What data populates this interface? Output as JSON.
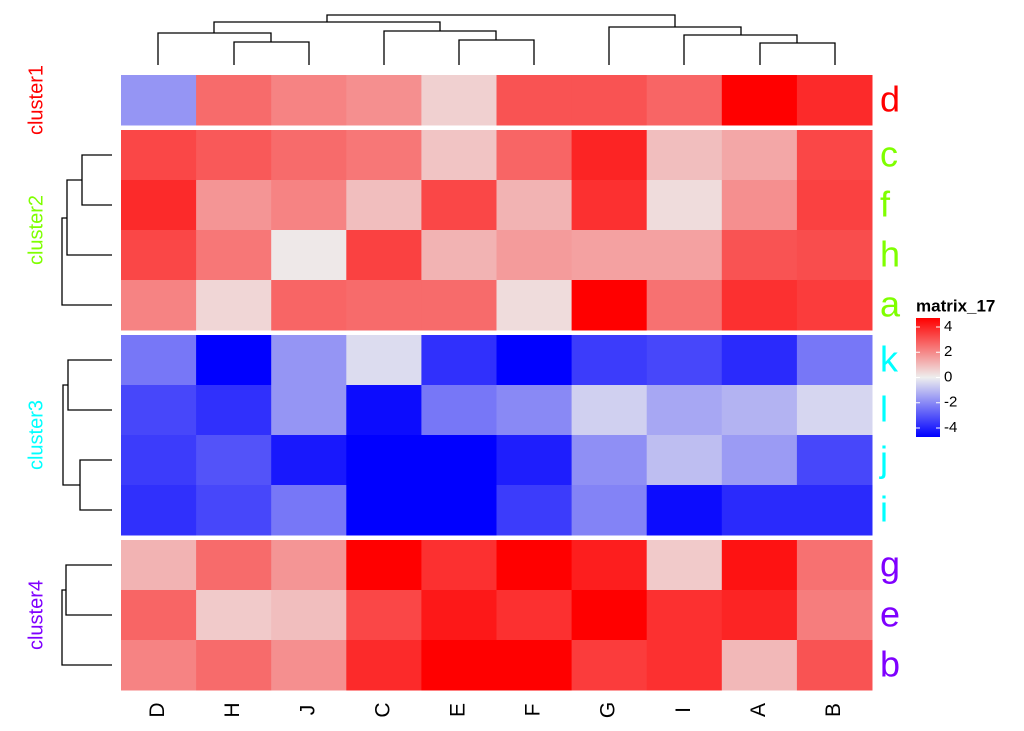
{
  "chart_data": {
    "type": "heatmap",
    "legend_title": "matrix_17",
    "x": [
      "D",
      "H",
      "J",
      "C",
      "E",
      "F",
      "G",
      "I",
      "A",
      "B"
    ],
    "groups": [
      {
        "name": "cluster1",
        "color": "#ff0000",
        "rows": [
          "d"
        ],
        "values": [
          [
            -1.5,
            2.2,
            1.8,
            1.6,
            0.5,
            2.6,
            2.6,
            2.3,
            4.0,
            3.3
          ]
        ]
      },
      {
        "name": "cluster2",
        "color": "#7fff00",
        "rows": [
          "c",
          "f",
          "h",
          "a"
        ],
        "values": [
          [
            2.8,
            2.5,
            2.2,
            2.0,
            0.7,
            2.3,
            3.4,
            0.8,
            1.2,
            2.8
          ],
          [
            3.3,
            1.5,
            1.8,
            0.8,
            2.8,
            1.0,
            3.2,
            0.3,
            1.6,
            2.9
          ],
          [
            2.8,
            2.0,
            0.1,
            2.9,
            1.0,
            1.4,
            1.3,
            1.3,
            2.6,
            2.7
          ],
          [
            1.8,
            0.4,
            2.3,
            2.2,
            2.2,
            0.3,
            4.0,
            2.1,
            3.2,
            3.0
          ]
        ]
      },
      {
        "name": "cluster3",
        "color": "#00ffff",
        "rows": [
          "k",
          "l",
          "j",
          "i"
        ],
        "values": [
          [
            -2.0,
            -4.2,
            -1.5,
            -0.3,
            -3.2,
            -4.0,
            -3.0,
            -2.8,
            -3.3,
            -2.0
          ],
          [
            -2.8,
            -3.2,
            -1.5,
            -3.8,
            -2.0,
            -1.7,
            -0.5,
            -1.2,
            -1.0,
            -0.4
          ],
          [
            -3.0,
            -2.6,
            -3.6,
            -5.0,
            -5.0,
            -3.5,
            -1.6,
            -0.8,
            -1.4,
            -2.8
          ],
          [
            -3.2,
            -2.8,
            -2.0,
            -4.8,
            -4.3,
            -3.0,
            -1.8,
            -3.8,
            -3.3,
            -3.3
          ]
        ]
      },
      {
        "name": "cluster4",
        "color": "#7f00ff",
        "rows": [
          "g",
          "e",
          "b"
        ],
        "values": [
          [
            1.0,
            2.2,
            1.5,
            4.2,
            3.2,
            4.5,
            3.5,
            0.6,
            3.7,
            2.1
          ],
          [
            2.3,
            0.6,
            0.8,
            2.8,
            3.6,
            3.2,
            5.0,
            3.2,
            3.4,
            1.9
          ],
          [
            1.8,
            2.2,
            1.6,
            3.3,
            4.0,
            5.0,
            3.0,
            3.2,
            0.9,
            2.6
          ]
        ]
      }
    ],
    "colors": [
      "#0000ff",
      "#eeeeee",
      "#ff0000"
    ],
    "zlim": [
      -4,
      4
    ],
    "zticks": [
      4,
      2,
      0,
      -2,
      -4
    ]
  }
}
